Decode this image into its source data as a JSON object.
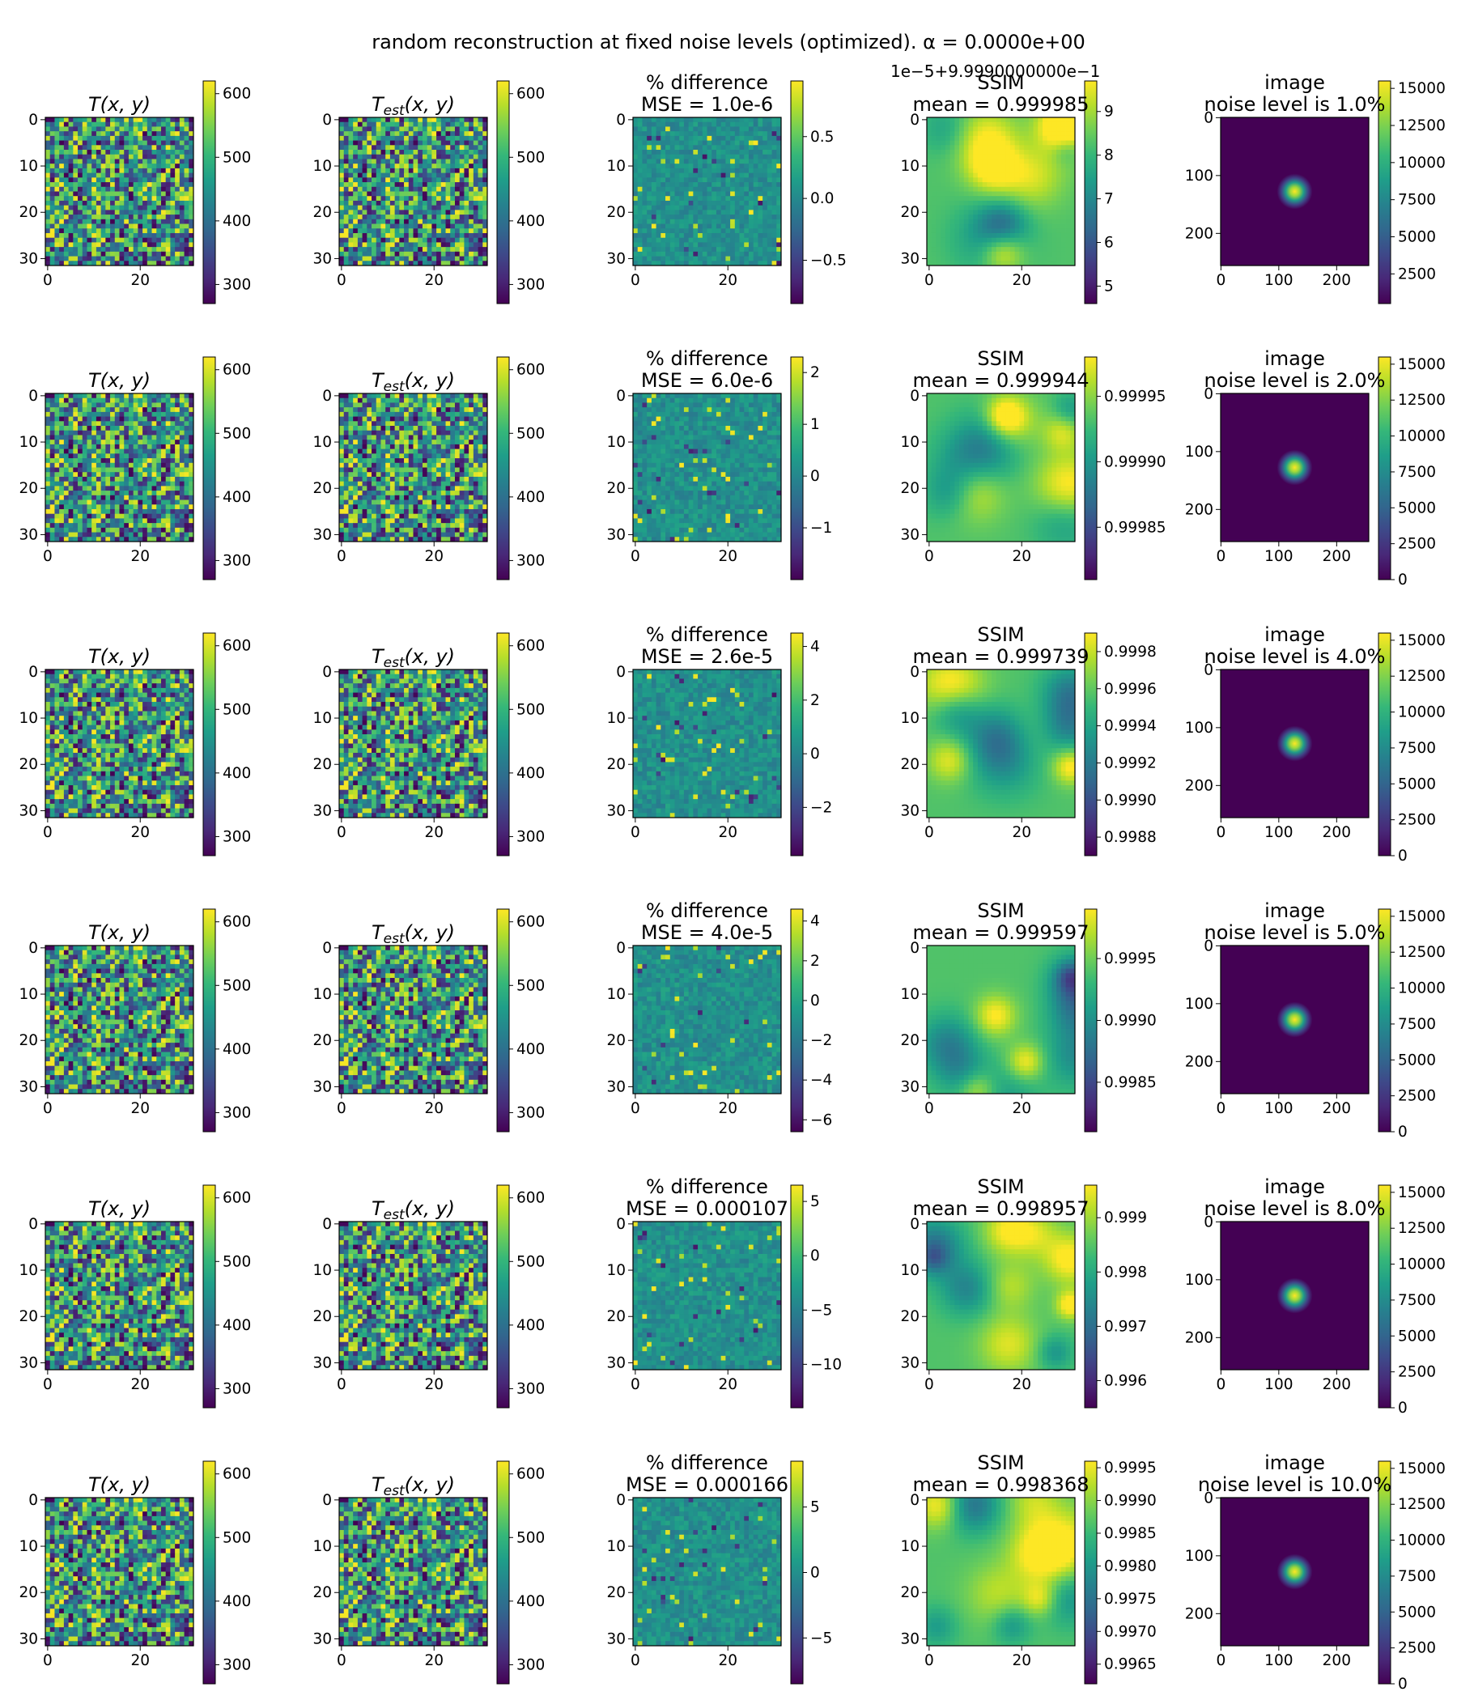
{
  "figure": {
    "suptitle": "random reconstruction at fixed noise levels (optimized). α = 0.0000e+00",
    "offset_text": "1e−5+9.9990000000e−1"
  },
  "colors": {
    "viridis": [
      "#440154",
      "#482878",
      "#3e4989",
      "#31688e",
      "#26828e",
      "#1f9e89",
      "#35b779",
      "#6ece58",
      "#b5de2b",
      "#fde725"
    ],
    "image_background": "#440154",
    "axis": "#000000"
  },
  "chart_data": {
    "type": "heatmap",
    "columns": [
      {
        "key": "T",
        "title_lines": [
          "T(x, y)"
        ],
        "math_title": true,
        "grid": 32,
        "xticks": [
          "0",
          "20"
        ],
        "yticks": [
          "0",
          "10",
          "20",
          "30"
        ]
      },
      {
        "key": "Test",
        "title_lines": [
          "T_est(x, y)"
        ],
        "math_title": true,
        "grid": 32,
        "xticks": [
          "0",
          "20"
        ],
        "yticks": [
          "0",
          "10",
          "20",
          "30"
        ]
      },
      {
        "key": "diff",
        "title_prefix": "% difference",
        "grid": 32,
        "xticks": [
          "0",
          "20"
        ],
        "yticks": [
          "0",
          "10",
          "20",
          "30"
        ]
      },
      {
        "key": "ssim",
        "title_prefix": "SSIM",
        "grid": 32,
        "xticks": [
          "0",
          "20"
        ],
        "yticks": [
          "0",
          "10",
          "20",
          "30"
        ]
      },
      {
        "key": "image",
        "title_prefix": "image",
        "grid": 256,
        "xticks": [
          "0",
          "100",
          "200"
        ],
        "yticks": [
          "0",
          "100",
          "200"
        ]
      }
    ],
    "rows": [
      {
        "noise_level": "1.0%",
        "T": {
          "colorbar_ticks": [
            "300",
            "400",
            "500",
            "600"
          ],
          "range": [
            270,
            620
          ]
        },
        "Test": {
          "colorbar_ticks": [
            "300",
            "400",
            "500",
            "600"
          ],
          "range": [
            270,
            620
          ]
        },
        "diff": {
          "subtitle": "MSE = 1.0e-6",
          "colorbar_ticks": [
            "−0.5",
            "0.0",
            "0.5"
          ],
          "range": [
            -0.85,
            0.95
          ]
        },
        "ssim": {
          "subtitle": "mean = 0.999985",
          "colorbar_ticks": [
            "5",
            "6",
            "7",
            "8",
            "9"
          ],
          "range": [
            4.6,
            9.7
          ]
        },
        "image": {
          "subtitle": "noise level is 1.0%",
          "colorbar_ticks": [
            "2500",
            "5000",
            "7500",
            "10000",
            "12500",
            "15000"
          ],
          "range": [
            500,
            15500
          ]
        }
      },
      {
        "noise_level": "2.0%",
        "T": {
          "colorbar_ticks": [
            "300",
            "400",
            "500",
            "600"
          ],
          "range": [
            270,
            620
          ]
        },
        "Test": {
          "colorbar_ticks": [
            "300",
            "400",
            "500",
            "600"
          ],
          "range": [
            270,
            620
          ]
        },
        "diff": {
          "subtitle": "MSE = 6.0e-6",
          "colorbar_ticks": [
            "−1",
            "0",
            "1",
            "2"
          ],
          "range": [
            -2,
            2.3
          ]
        },
        "ssim": {
          "subtitle": "mean = 0.999944",
          "colorbar_ticks": [
            "0.99985",
            "0.99990",
            "0.99995"
          ],
          "range": [
            0.99981,
            0.99998
          ]
        },
        "image": {
          "subtitle": "noise level is 2.0%",
          "colorbar_ticks": [
            "0",
            "2500",
            "5000",
            "7500",
            "10000",
            "12500",
            "15000"
          ],
          "range": [
            0,
            15500
          ]
        }
      },
      {
        "noise_level": "4.0%",
        "T": {
          "colorbar_ticks": [
            "300",
            "400",
            "500",
            "600"
          ],
          "range": [
            270,
            620
          ]
        },
        "Test": {
          "colorbar_ticks": [
            "300",
            "400",
            "500",
            "600"
          ],
          "range": [
            270,
            620
          ]
        },
        "diff": {
          "subtitle": "MSE = 2.6e-5",
          "colorbar_ticks": [
            "−2",
            "0",
            "2",
            "4"
          ],
          "range": [
            -3.8,
            4.5
          ]
        },
        "ssim": {
          "subtitle": "mean = 0.999739",
          "colorbar_ticks": [
            "0.9988",
            "0.9990",
            "0.9992",
            "0.9994",
            "0.9996",
            "0.9998"
          ],
          "range": [
            0.9987,
            0.9999
          ]
        },
        "image": {
          "subtitle": "noise level is 4.0%",
          "colorbar_ticks": [
            "0",
            "2500",
            "5000",
            "7500",
            "10000",
            "12500",
            "15000"
          ],
          "range": [
            0,
            15500
          ]
        }
      },
      {
        "noise_level": "5.0%",
        "T": {
          "colorbar_ticks": [
            "300",
            "400",
            "500",
            "600"
          ],
          "range": [
            270,
            620
          ]
        },
        "Test": {
          "colorbar_ticks": [
            "300",
            "400",
            "500",
            "600"
          ],
          "range": [
            270,
            620
          ]
        },
        "diff": {
          "subtitle": "MSE = 4.0e-5",
          "colorbar_ticks": [
            "−6",
            "−4",
            "−2",
            "0",
            "2",
            "4"
          ],
          "range": [
            -6.6,
            4.6
          ]
        },
        "ssim": {
          "subtitle": "mean = 0.999597",
          "colorbar_ticks": [
            "0.9985",
            "0.9990",
            "0.9995"
          ],
          "range": [
            0.9981,
            0.9999
          ]
        },
        "image": {
          "subtitle": "noise level is 5.0%",
          "colorbar_ticks": [
            "0",
            "2500",
            "5000",
            "7500",
            "10000",
            "12500",
            "15000"
          ],
          "range": [
            0,
            15500
          ]
        }
      },
      {
        "noise_level": "8.0%",
        "T": {
          "colorbar_ticks": [
            "300",
            "400",
            "500",
            "600"
          ],
          "range": [
            270,
            620
          ]
        },
        "Test": {
          "colorbar_ticks": [
            "300",
            "400",
            "500",
            "600"
          ],
          "range": [
            270,
            620
          ]
        },
        "diff": {
          "subtitle": "MSE = 0.000107",
          "colorbar_ticks": [
            "−10",
            "−5",
            "0",
            "5"
          ],
          "range": [
            -14,
            6.5
          ]
        },
        "ssim": {
          "subtitle": "mean = 0.998957",
          "colorbar_ticks": [
            "0.996",
            "0.997",
            "0.998",
            "0.999"
          ],
          "range": [
            0.9955,
            0.9996
          ]
        },
        "image": {
          "subtitle": "noise level is 8.0%",
          "colorbar_ticks": [
            "0",
            "2500",
            "5000",
            "7500",
            "10000",
            "12500",
            "15000"
          ],
          "range": [
            0,
            15500
          ]
        }
      },
      {
        "noise_level": "10.0%",
        "T": {
          "colorbar_ticks": [
            "300",
            "400",
            "500",
            "600"
          ],
          "range": [
            270,
            620
          ]
        },
        "Test": {
          "colorbar_ticks": [
            "300",
            "400",
            "500",
            "600"
          ],
          "range": [
            270,
            620
          ]
        },
        "diff": {
          "subtitle": "MSE = 0.000166",
          "colorbar_ticks": [
            "−5",
            "0",
            "5"
          ],
          "range": [
            -8.5,
            8.5
          ]
        },
        "ssim": {
          "subtitle": "mean = 0.998368",
          "colorbar_ticks": [
            "0.9965",
            "0.9970",
            "0.9975",
            "0.9980",
            "0.9985",
            "0.9990",
            "0.9995"
          ],
          "range": [
            0.9962,
            0.9996
          ]
        },
        "image": {
          "subtitle": "noise level is 10.0%",
          "colorbar_ticks": [
            "0",
            "2500",
            "5000",
            "7500",
            "10000",
            "12500",
            "15000"
          ],
          "range": [
            0,
            15500
          ]
        }
      }
    ]
  }
}
